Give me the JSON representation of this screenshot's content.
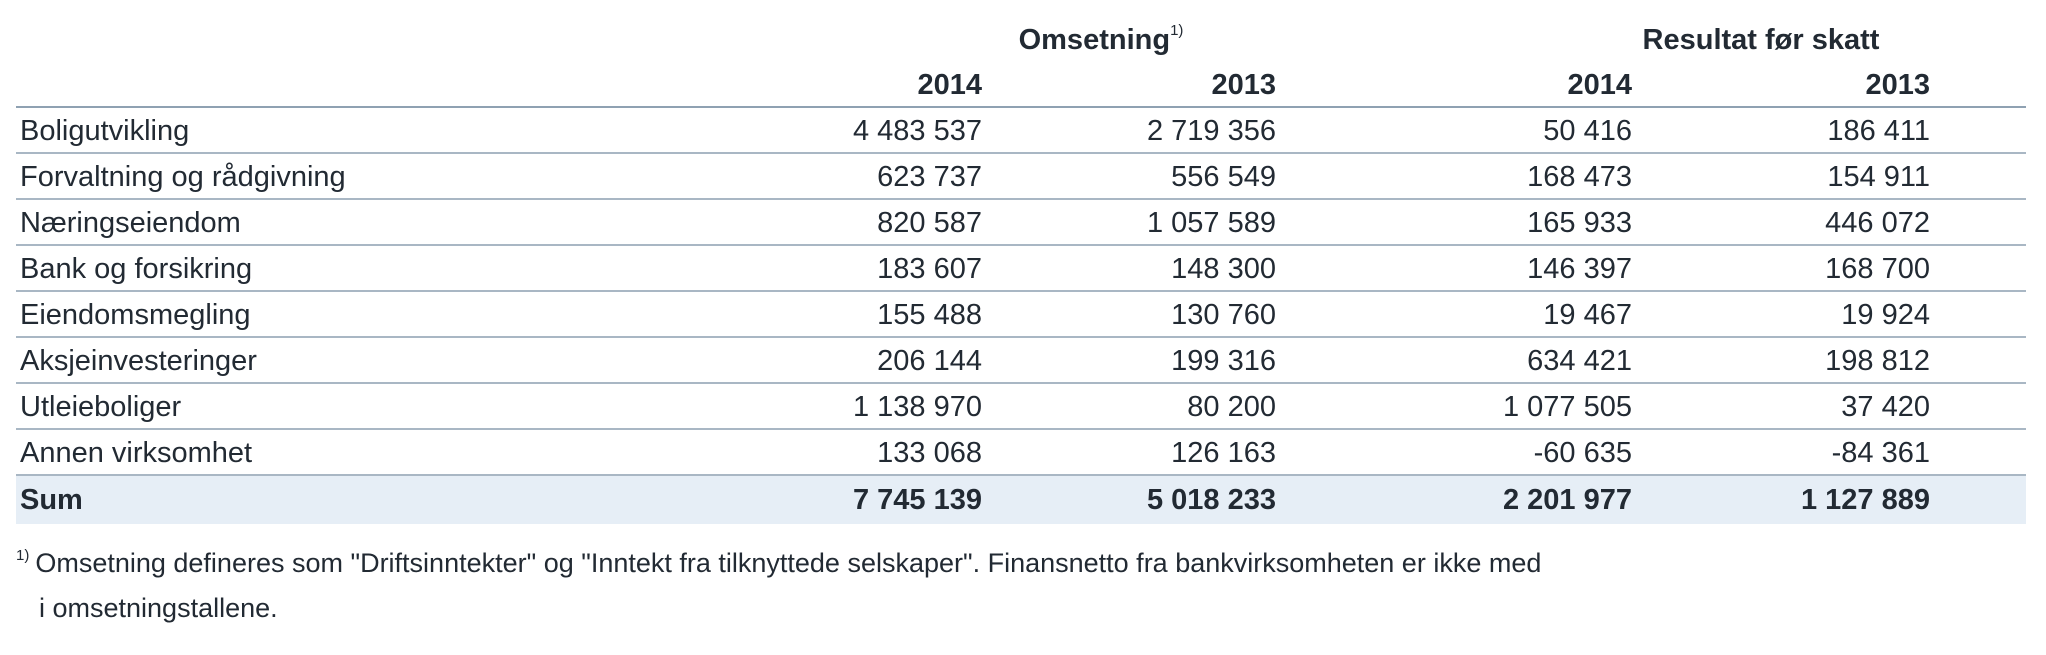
{
  "groups": {
    "omsetning": "Omsetning",
    "omsetning_note": "1)",
    "resultat": "Resultat før skatt"
  },
  "years": {
    "om_2014": "2014",
    "om_2013": "2013",
    "res_2014": "2014",
    "res_2013": "2013"
  },
  "rows": [
    {
      "label": "Boligutvikling",
      "om_2014": "4 483 537",
      "om_2013": "2 719 356",
      "res_2014": "50 416",
      "res_2013": "186 411"
    },
    {
      "label": "Forvaltning og rådgivning",
      "om_2014": "623 737",
      "om_2013": "556 549",
      "res_2014": "168 473",
      "res_2013": "154 911"
    },
    {
      "label": "Næringseiendom",
      "om_2014": "820 587",
      "om_2013": "1 057 589",
      "res_2014": "165 933",
      "res_2013": "446 072"
    },
    {
      "label": "Bank og forsikring",
      "om_2014": "183 607",
      "om_2013": "148 300",
      "res_2014": "146 397",
      "res_2013": "168 700"
    },
    {
      "label": "Eiendomsmegling",
      "om_2014": "155 488",
      "om_2013": "130 760",
      "res_2014": "19 467",
      "res_2013": "19 924"
    },
    {
      "label": "Aksjeinvesteringer",
      "om_2014": "206 144",
      "om_2013": "199 316",
      "res_2014": "634 421",
      "res_2013": "198 812"
    },
    {
      "label": "Utleieboliger",
      "om_2014": "1 138 970",
      "om_2013": "80 200",
      "res_2014": "1 077 505",
      "res_2013": "37 420"
    },
    {
      "label": "Annen virksomhet",
      "om_2014": "133 068",
      "om_2013": "126 163",
      "res_2014": "-60 635",
      "res_2013": "-84 361"
    }
  ],
  "sum": {
    "label": "Sum",
    "om_2014": "7 745 139",
    "om_2013": "5 018 233",
    "res_2014": "2 201 977",
    "res_2013": "1 127 889"
  },
  "footnote": {
    "mark": "1)",
    "line1": "Omsetning defineres som \"Driftsinntekter\" og \"Inntekt fra tilknyttede selskaper\". Finansnetto fra bankvirksomheten er ikke med",
    "line2": "i omsetningstallene."
  }
}
